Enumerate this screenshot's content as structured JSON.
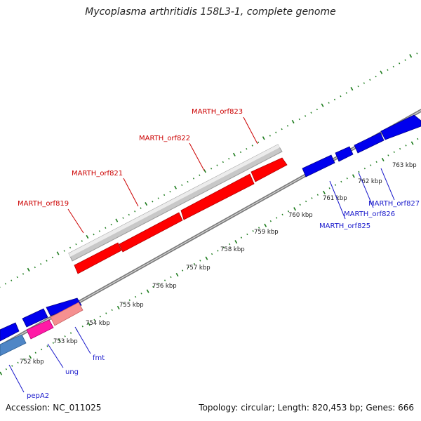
{
  "title": "Mycoplasma arthritidis 158L3-1, complete genome",
  "footer": {
    "accession": "Accession: NC_011025",
    "summary": "Topology: circular; Length: 820,453 bp; Genes: 666"
  },
  "colors": {
    "backbone": "#7a7a7a",
    "tick": "#1a7a1a",
    "label_red": "#cc0000",
    "label_blue": "#1a1acc",
    "feature_gray": "#c8c8c8",
    "feature_red": "#ff0000",
    "feature_blue": "#0000ee",
    "feature_magenta": "#ff1aa6",
    "feature_salmon": "#f59090",
    "feature_steelblue": "#4f86c6"
  },
  "tick_labels": [
    "752 kbp",
    "753 kbp",
    "754 kbp",
    "755 kbp",
    "756 kbp",
    "757 kbp",
    "758 kbp",
    "759 kbp",
    "760 kbp",
    "761 kbp",
    "762 kbp",
    "763 kbp"
  ],
  "genes": {
    "marth_orf819": "MARTH_orf819",
    "marth_orf821": "MARTH_orf821",
    "marth_orf822": "MARTH_orf822",
    "marth_orf823": "MARTH_orf823",
    "marth_orf825": "MARTH_orf825",
    "marth_orf826": "MARTH_orf826",
    "marth_orf827": "MARTH_orf827",
    "pepA2": "pepA2",
    "ung": "ung",
    "fmt": "fmt"
  }
}
